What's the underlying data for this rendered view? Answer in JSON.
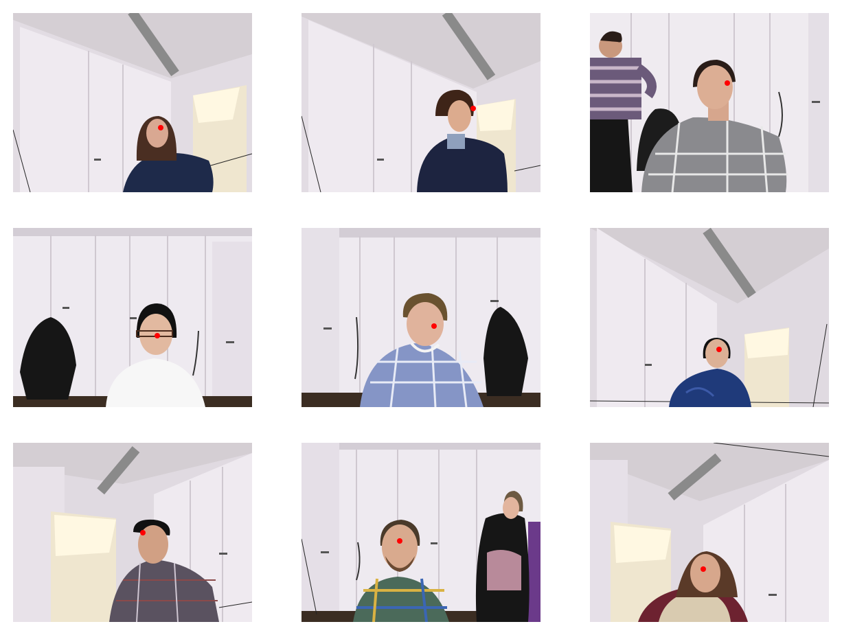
{
  "grid": {
    "rows": 3,
    "columns": 3
  },
  "colors": {
    "background": "#ffffff",
    "keypoint_marker": "#ff0000",
    "cabinet": "#ece7ee",
    "wall": "#dcd6de",
    "ceiling": "#d7d1d6"
  },
  "tiles": [
    {
      "name": "photo-woman-long-hair-navy-top",
      "subject": "woman",
      "keypoint": "nose"
    },
    {
      "name": "photo-man-curly-hair-navy-sweater",
      "subject": "man",
      "keypoint": "nose"
    },
    {
      "name": "photo-man-grey-check-sweater",
      "subject": "man",
      "keypoint": "nose"
    },
    {
      "name": "photo-woman-glasses-white-top",
      "subject": "woman",
      "keypoint": "nose"
    },
    {
      "name": "photo-woman-plaid-shirt",
      "subject": "woman",
      "keypoint": "nose"
    },
    {
      "name": "photo-woman-glasses-blue-fleece",
      "subject": "woman",
      "keypoint": "nose"
    },
    {
      "name": "photo-man-plaid-shirt-looking-up",
      "subject": "man",
      "keypoint": "nose"
    },
    {
      "name": "photo-man-beard-plaid-shirt",
      "subject": "man",
      "keypoint": "nose"
    },
    {
      "name": "photo-woman-curly-hair-vest",
      "subject": "woman",
      "keypoint": "nose"
    }
  ]
}
